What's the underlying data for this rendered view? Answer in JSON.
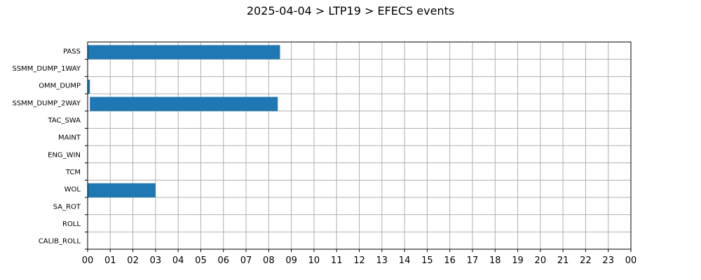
{
  "chart_data": {
    "type": "bar",
    "orientation": "horizontal-timeline",
    "title": "2025-04-04 > LTP19 > EFECS events",
    "xlabel": "",
    "ylabel": "",
    "x_ticks": [
      "00",
      "01",
      "02",
      "03",
      "04",
      "05",
      "06",
      "07",
      "08",
      "09",
      "10",
      "11",
      "12",
      "13",
      "14",
      "15",
      "16",
      "17",
      "18",
      "19",
      "20",
      "21",
      "22",
      "23",
      "00"
    ],
    "xlim_hours": [
      0,
      24
    ],
    "categories": [
      "PASS",
      "SSMM_DUMP_1WAY",
      "OMM_DUMP",
      "SSMM_DUMP_2WAY",
      "TAC_SWA",
      "MAINT",
      "ENG_WIN",
      "TCM",
      "WOL",
      "SA_ROT",
      "ROLL",
      "CALIB_ROLL"
    ],
    "events": [
      {
        "category": "PASS",
        "start_hour": 0.0,
        "end_hour": 8.5
      },
      {
        "category": "OMM_DUMP",
        "start_hour": 0.0,
        "end_hour": 0.1
      },
      {
        "category": "SSMM_DUMP_2WAY",
        "start_hour": 0.1,
        "end_hour": 8.4
      },
      {
        "category": "WOL",
        "start_hour": 0.0,
        "end_hour": 3.0
      }
    ],
    "grid": true,
    "colors": {
      "bar": "#1f77b4",
      "grid": "#b0b0b0",
      "axis": "#000000"
    }
  }
}
